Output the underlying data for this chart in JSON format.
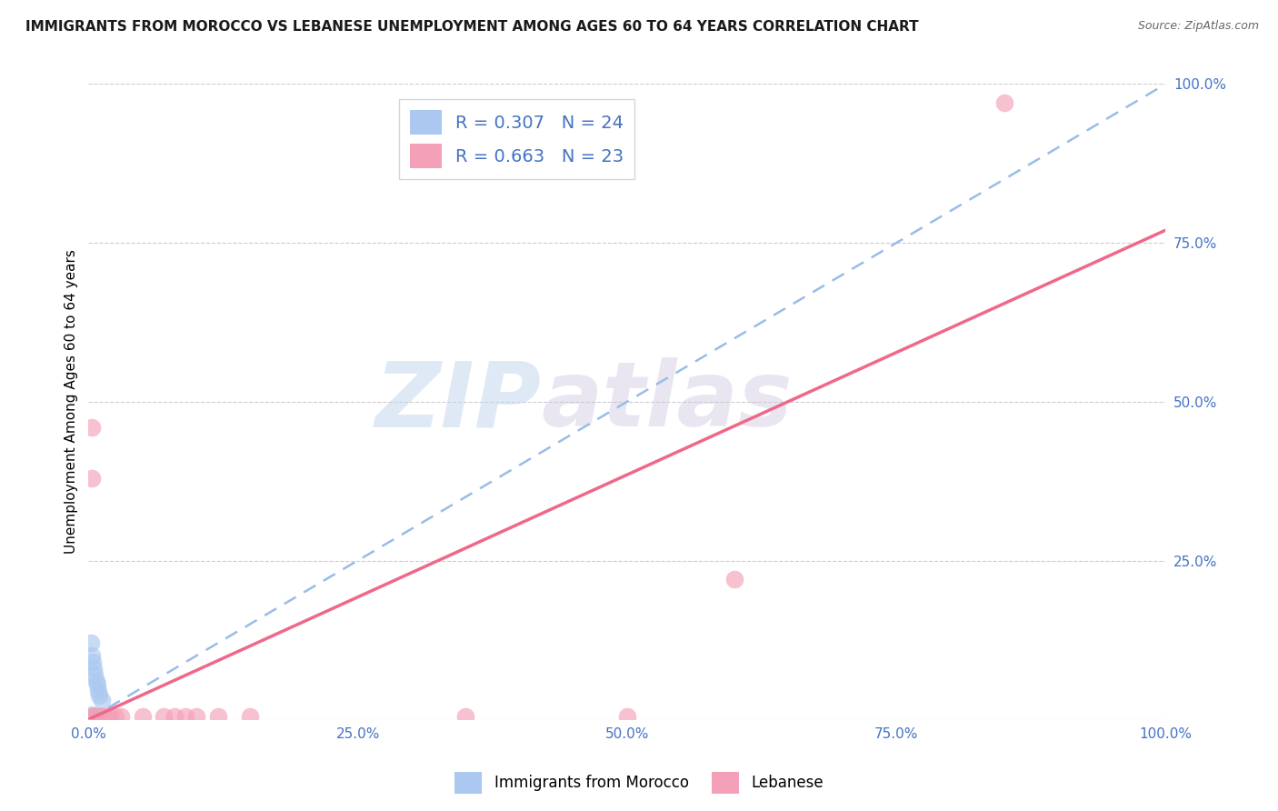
{
  "title": "IMMIGRANTS FROM MOROCCO VS LEBANESE UNEMPLOYMENT AMONG AGES 60 TO 64 YEARS CORRELATION CHART",
  "source": "Source: ZipAtlas.com",
  "ylabel": "Unemployment Among Ages 60 to 64 years",
  "xlim": [
    0.0,
    1.0
  ],
  "ylim": [
    0.0,
    1.0
  ],
  "x_ticks": [
    0.0,
    0.25,
    0.5,
    0.75,
    1.0
  ],
  "y_ticks": [
    0.25,
    0.5,
    0.75,
    1.0
  ],
  "x_tick_labels": [
    "0.0%",
    "25.0%",
    "50.0%",
    "75.0%",
    "100.0%"
  ],
  "y_tick_labels_right": [
    "25.0%",
    "50.0%",
    "75.0%",
    "100.0%"
  ],
  "watermark_zip": "ZIP",
  "watermark_atlas": "atlas",
  "background_color": "#ffffff",
  "grid_color": "#cccccc",
  "morocco_R": "0.307",
  "morocco_N": "24",
  "lebanese_R": "0.663",
  "lebanese_N": "23",
  "morocco_color": "#aac8f0",
  "lebanese_color": "#f4a0b8",
  "morocco_line_color": "#99bce8",
  "lebanese_line_color": "#f06888",
  "morocco_scatter_x": [
    0.002,
    0.003,
    0.004,
    0.005,
    0.006,
    0.007,
    0.008,
    0.009,
    0.01,
    0.012,
    0.002,
    0.003,
    0.004,
    0.005,
    0.006,
    0.007,
    0.008,
    0.009,
    0.01,
    0.012,
    0.003,
    0.004,
    0.005,
    0.002
  ],
  "morocco_scatter_y": [
    0.005,
    0.008,
    0.005,
    0.005,
    0.005,
    0.005,
    0.005,
    0.005,
    0.005,
    0.005,
    0.12,
    0.1,
    0.09,
    0.08,
    0.07,
    0.06,
    0.055,
    0.045,
    0.038,
    0.03,
    0.005,
    0.005,
    0.005,
    0.0
  ],
  "lebanese_scatter_x": [
    0.003,
    0.003,
    0.003,
    0.005,
    0.007,
    0.01,
    0.012,
    0.015,
    0.018,
    0.02,
    0.025,
    0.03,
    0.05,
    0.07,
    0.08,
    0.09,
    0.1,
    0.12,
    0.15,
    0.35,
    0.5,
    0.6,
    0.85
  ],
  "lebanese_scatter_y": [
    0.46,
    0.38,
    0.005,
    0.005,
    0.005,
    0.005,
    0.005,
    0.005,
    0.005,
    0.005,
    0.005,
    0.005,
    0.005,
    0.005,
    0.005,
    0.005,
    0.005,
    0.005,
    0.005,
    0.005,
    0.005,
    0.22,
    0.97
  ],
  "morocco_line_x0": 0.0,
  "morocco_line_x1": 1.0,
  "morocco_line_y0": 0.0,
  "morocco_line_y1": 1.0,
  "lebanese_line_x0": 0.0,
  "lebanese_line_x1": 1.0,
  "lebanese_line_y0": 0.0,
  "lebanese_line_y1": 0.77
}
